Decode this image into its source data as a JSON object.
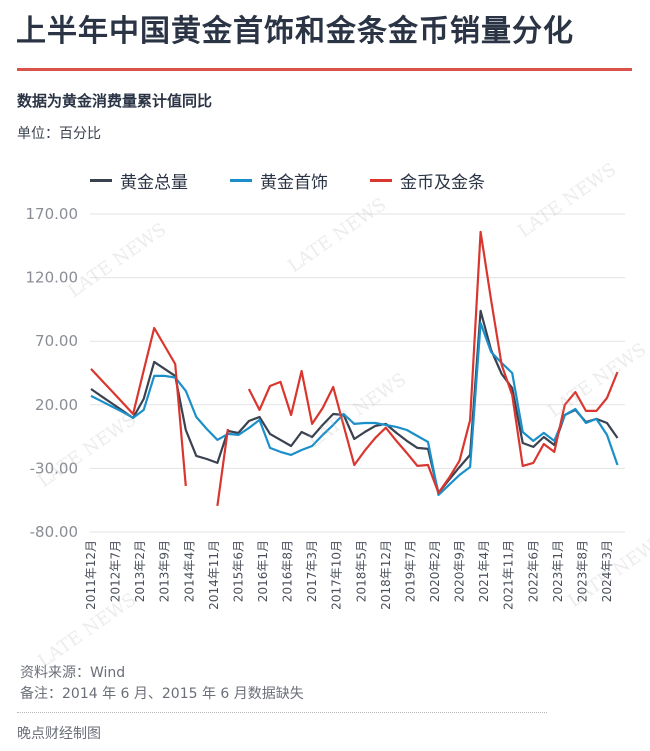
{
  "header": {
    "title": "上半年中国黄金首饰和金条金币销量分化",
    "subtitle": "数据为黄金消费量累计值同比",
    "unit": "单位：百分比"
  },
  "legend": [
    {
      "label": "黄金总量",
      "color": "#3a4250"
    },
    {
      "label": "黄金首饰",
      "color": "#1a8fc9"
    },
    {
      "label": "金币及金条",
      "color": "#d9362f"
    }
  ],
  "watermark": "LATE NEWS",
  "footer": {
    "source": "资料来源：Wind",
    "note": "备注：2014 年 6 月、2015 年 6 月数据缺失",
    "credit": "晚点财经制图"
  },
  "chart_data": {
    "type": "line",
    "title": "上半年中国黄金首饰和金条金币销量分化",
    "subtitle": "数据为黄金消费量累计值同比",
    "ylabel": "百分比",
    "ylim": [
      -80,
      170
    ],
    "yticks": [
      "170.00",
      "120.00",
      "70.00",
      "20.00",
      "-30.00",
      "-80.00"
    ],
    "grid": true,
    "legend_position": "top",
    "xtick_labels": [
      "2011年12月",
      "2012年7月",
      "2013年2月",
      "2013年9月",
      "2014年4月",
      "2014年11月",
      "2015年6月",
      "2016年1月",
      "2016年8月",
      "2017年3月",
      "2017年10月",
      "2018年5月",
      "2018年12月",
      "2019年7月",
      "2020年2月",
      "2020年9月",
      "2021年4月",
      "2021年11月",
      "2022年6月",
      "2023年1月",
      "2023年8月",
      "2024年3月"
    ],
    "x": [
      "2011-12",
      "2012-03",
      "2012-06",
      "2012-09",
      "2012-12",
      "2013-03",
      "2013-06",
      "2013-09",
      "2013-12",
      "2014-03",
      "2014-06",
      "2014-09",
      "2014-12",
      "2015-03",
      "2015-06",
      "2015-09",
      "2015-12",
      "2016-03",
      "2016-06",
      "2016-09",
      "2016-12",
      "2017-03",
      "2017-06",
      "2017-09",
      "2017-12",
      "2018-03",
      "2018-06",
      "2018-09",
      "2018-12",
      "2019-03",
      "2019-06",
      "2019-09",
      "2019-12",
      "2020-03",
      "2020-06",
      "2020-09",
      "2020-12",
      "2021-03",
      "2021-06",
      "2021-09",
      "2021-12",
      "2022-03",
      "2022-06",
      "2022-09",
      "2022-12",
      "2023-03",
      "2023-06",
      "2023-09",
      "2023-12",
      "2024-03",
      "2024-06"
    ],
    "series": [
      {
        "name": "黄金总量",
        "color": "#3a4250",
        "values": [
          32.4,
          26.7,
          21.0,
          15.4,
          9.7,
          24.6,
          53.7,
          48.2,
          42.7,
          0.2,
          -20.2,
          -22.6,
          -25.7,
          -0.6,
          -2.1,
          7.3,
          10.4,
          -2.9,
          -7.6,
          -12.4,
          -1.4,
          -5.3,
          4.2,
          12.8,
          12.0,
          -6.9,
          -1.4,
          3.4,
          5.0,
          -2.1,
          -8.4,
          -13.9,
          -14.7,
          -49.3,
          -39.0,
          -29.0,
          -19.4,
          93.8,
          63.1,
          44.2,
          33.2,
          -10.0,
          -13.1,
          -5.3,
          -11.6,
          12.0,
          16.0,
          6.5,
          8.9,
          5.7,
          -6.1
        ]
      },
      {
        "name": "黄金首饰",
        "color": "#1a8fc9",
        "values": [
          27.0,
          22.8,
          18.6,
          14.4,
          9.7,
          16.0,
          42.7,
          42.7,
          41.5,
          30.9,
          10.4,
          1.0,
          -7.6,
          -2.9,
          -3.7,
          1.8,
          8.1,
          -13.9,
          -17.0,
          -19.4,
          -15.5,
          -12.4,
          -3.7,
          4.2,
          12.8,
          5.0,
          5.7,
          5.7,
          4.2,
          2.6,
          0.2,
          -4.5,
          -9.2,
          -50.9,
          -43.0,
          -35.2,
          -28.9,
          84.3,
          61.5,
          52.9,
          45.0,
          -1.4,
          -8.4,
          -2.1,
          -8.4,
          12.0,
          16.7,
          5.7,
          8.9,
          -3.7,
          -27.3
        ]
      },
      {
        "name": "金币及金条",
        "color": "#d9362f",
        "values": [
          48.2,
          39.4,
          30.5,
          21.7,
          12.8,
          47.0,
          80.4,
          66.2,
          52.1,
          -43.8,
          null,
          null,
          -59.5,
          1.0,
          null,
          32.4,
          16.0,
          34.8,
          38.0,
          12.0,
          46.6,
          5.0,
          17.5,
          34.0,
          3.4,
          -27.3,
          -16.0,
          -6.0,
          2.0,
          -8.4,
          -18.0,
          -28.0,
          -27.3,
          -49.3,
          -37.5,
          -24.0,
          8.0,
          155.9,
          102.4,
          51.3,
          27.7,
          -28.0,
          -25.7,
          -10.8,
          -17.0,
          20.0,
          30.0,
          15.2,
          15.2,
          25.4,
          45.8
        ]
      }
    ]
  }
}
